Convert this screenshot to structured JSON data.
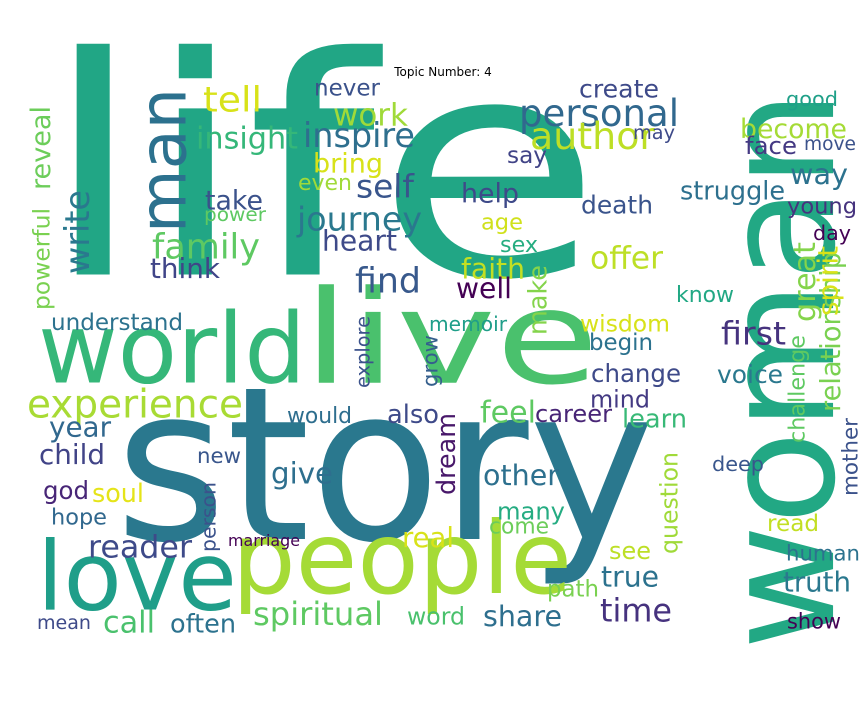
{
  "title": "Topic Number: 4",
  "words": [
    {
      "text": "life",
      "color": "#21a685"
    },
    {
      "text": "story",
      "color": "#2a788e"
    },
    {
      "text": "woman",
      "color": "#22a884"
    },
    {
      "text": "people",
      "color": "#a5db36"
    },
    {
      "text": "world",
      "color": "#35b779"
    },
    {
      "text": "live",
      "color": "#4ac16d"
    },
    {
      "text": "love",
      "color": "#1f9e89"
    },
    {
      "text": "man",
      "color": "#2c718e"
    },
    {
      "text": "experience",
      "color": "#a8db34"
    },
    {
      "text": "personal",
      "color": "#31688e"
    },
    {
      "text": "author",
      "color": "#bddf26"
    },
    {
      "text": "work",
      "color": "#a0da39"
    },
    {
      "text": "become",
      "color": "#a5db36"
    },
    {
      "text": "way",
      "color": "#2c728e"
    },
    {
      "text": "family",
      "color": "#5ec962"
    },
    {
      "text": "journey",
      "color": "#2a788e"
    },
    {
      "text": "inspire",
      "color": "#2e6f8e"
    },
    {
      "text": "find",
      "color": "#38598c"
    },
    {
      "text": "time",
      "color": "#46327e"
    },
    {
      "text": "dream",
      "color": "#48186a"
    },
    {
      "text": "many",
      "color": "#25ac82"
    },
    {
      "text": "other",
      "color": "#2d708e"
    },
    {
      "text": "spiritual",
      "color": "#5ec962"
    },
    {
      "text": "share",
      "color": "#2e6f8e"
    },
    {
      "text": "reader",
      "color": "#3e4a89"
    },
    {
      "text": "relationship",
      "color": "#7ad151"
    },
    {
      "text": "change",
      "color": "#3e4a89"
    },
    {
      "text": "tell",
      "color": "#d8e219"
    },
    {
      "text": "insight",
      "color": "#35b779"
    },
    {
      "text": "never",
      "color": "#3b528b"
    },
    {
      "text": "create",
      "color": "#3e4a89"
    },
    {
      "text": "good",
      "color": "#1fa088"
    },
    {
      "text": "move",
      "color": "#3b528b"
    },
    {
      "text": "face",
      "color": "#443983"
    },
    {
      "text": "may",
      "color": "#3e4a89"
    },
    {
      "text": "say",
      "color": "#414487"
    },
    {
      "text": "bring",
      "color": "#d8e219"
    },
    {
      "text": "even",
      "color": "#a0da39"
    },
    {
      "text": "self",
      "color": "#39558c"
    },
    {
      "text": "help",
      "color": "#3e4a89"
    },
    {
      "text": "struggle",
      "color": "#2d708e"
    },
    {
      "text": "young",
      "color": "#46337e"
    },
    {
      "text": "death",
      "color": "#3a548c"
    },
    {
      "text": "age",
      "color": "#d0e11c"
    },
    {
      "text": "sex",
      "color": "#26ad81"
    },
    {
      "text": "take",
      "color": "#3b528b"
    },
    {
      "text": "power",
      "color": "#5ec962"
    },
    {
      "text": "heart",
      "color": "#3e4a89"
    },
    {
      "text": "write",
      "color": "#2a788e"
    },
    {
      "text": "great",
      "color": "#84d44b"
    },
    {
      "text": "day",
      "color": "#440154"
    },
    {
      "text": "spirit",
      "color": "#d8e219"
    },
    {
      "text": "offer",
      "color": "#bddf26"
    },
    {
      "text": "faith",
      "color": "#c2df23"
    },
    {
      "text": "well",
      "color": "#440154"
    },
    {
      "text": "make",
      "color": "#84d44b"
    },
    {
      "text": "know",
      "color": "#22a884"
    },
    {
      "text": "think",
      "color": "#404588"
    },
    {
      "text": "powerful",
      "color": "#7ad151"
    },
    {
      "text": "reveal",
      "color": "#6ccd5a"
    },
    {
      "text": "understand",
      "color": "#2c728e"
    },
    {
      "text": "explore",
      "color": "#3b528b"
    },
    {
      "text": "memoir",
      "color": "#1f9e89"
    },
    {
      "text": "wisdom",
      "color": "#d8e219"
    },
    {
      "text": "begin",
      "color": "#2c728e"
    },
    {
      "text": "first",
      "color": "#46337e"
    },
    {
      "text": "grow",
      "color": "#355f8d"
    },
    {
      "text": "challenge",
      "color": "#5ec962"
    },
    {
      "text": "voice",
      "color": "#2a788e"
    },
    {
      "text": "mind",
      "color": "#443a83"
    },
    {
      "text": "year",
      "color": "#31688e"
    },
    {
      "text": "would",
      "color": "#2e6e8e"
    },
    {
      "text": "also",
      "color": "#3e4a89"
    },
    {
      "text": "feel",
      "color": "#5ec962"
    },
    {
      "text": "career",
      "color": "#482576"
    },
    {
      "text": "learn",
      "color": "#38b977"
    },
    {
      "text": "child",
      "color": "#414487"
    },
    {
      "text": "new",
      "color": "#39568c"
    },
    {
      "text": "give",
      "color": "#2e6f8e"
    },
    {
      "text": "deep",
      "color": "#39568c"
    },
    {
      "text": "mother",
      "color": "#3b528b"
    },
    {
      "text": "god",
      "color": "#482677"
    },
    {
      "text": "soul",
      "color": "#e5e419"
    },
    {
      "text": "person",
      "color": "#3b528b"
    },
    {
      "text": "question",
      "color": "#a0da39"
    },
    {
      "text": "hope",
      "color": "#31688e"
    },
    {
      "text": "come",
      "color": "#6ccd5a"
    },
    {
      "text": "read",
      "color": "#c2df23"
    },
    {
      "text": "human",
      "color": "#2c728e"
    },
    {
      "text": "marriage",
      "color": "#440154"
    },
    {
      "text": "real",
      "color": "#d8e219"
    },
    {
      "text": "see",
      "color": "#bddf26"
    },
    {
      "text": "true",
      "color": "#2c728e"
    },
    {
      "text": "truth",
      "color": "#2a788e"
    },
    {
      "text": "path",
      "color": "#7ad151"
    },
    {
      "text": "mean",
      "color": "#3e4a89"
    },
    {
      "text": "call",
      "color": "#4ac16d"
    },
    {
      "text": "often",
      "color": "#2c728e"
    },
    {
      "text": "word",
      "color": "#4ac16d"
    },
    {
      "text": "show",
      "color": "#440154"
    }
  ]
}
